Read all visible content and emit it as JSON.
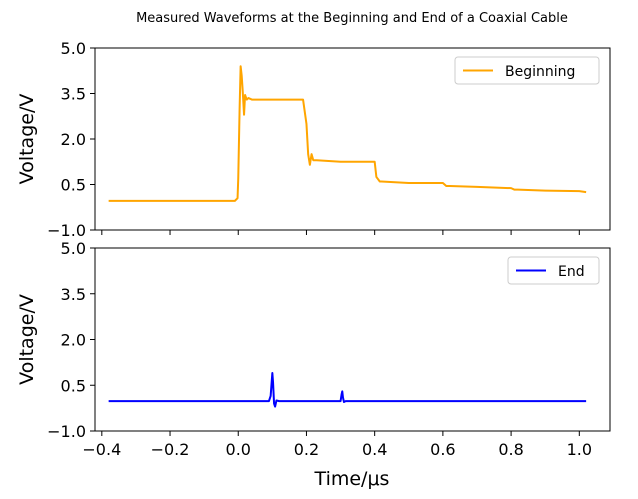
{
  "chart_data": {
    "type": "line",
    "title": "Measured Waveforms at the Beginning and End of a Coaxial Cable",
    "xlabel": "Time/μs",
    "xlim": [
      -0.42,
      1.09
    ],
    "xticks": [
      -0.4,
      -0.2,
      0.0,
      0.2,
      0.4,
      0.6,
      0.8,
      1.0
    ],
    "xtick_labels": [
      "−0.4",
      "−0.2",
      "0.0",
      "0.2",
      "0.4",
      "0.6",
      "0.8",
      "1.0"
    ],
    "subplots": [
      {
        "ylabel": "Voltage/V",
        "ylim": [
          -1.0,
          5.0
        ],
        "yticks": [
          -1.0,
          0.5,
          2.0,
          3.5,
          5.0
        ],
        "ytick_labels": [
          "−1.0",
          "0.5",
          "2.0",
          "3.5",
          "5.0"
        ],
        "legend_position": "top-right",
        "grid": false,
        "series": [
          {
            "name": "Beginning",
            "color": "#ffa500",
            "x": [
              -0.38,
              -0.2,
              -0.01,
              -0.002,
              0.0,
              0.004,
              0.007,
              0.01,
              0.013,
              0.017,
              0.02,
              0.025,
              0.03,
              0.04,
              0.1,
              0.19,
              0.2,
              0.205,
              0.21,
              0.215,
              0.22,
              0.23,
              0.3,
              0.4,
              0.405,
              0.415,
              0.42,
              0.5,
              0.6,
              0.61,
              0.62,
              0.7,
              0.8,
              0.81,
              0.82,
              0.9,
              1.0,
              1.02
            ],
            "y": [
              -0.04,
              -0.04,
              -0.04,
              0.05,
              0.7,
              3.0,
              4.4,
              4.1,
              3.6,
              2.8,
              3.45,
              3.3,
              3.35,
              3.3,
              3.3,
              3.3,
              2.5,
              1.5,
              1.15,
              1.5,
              1.3,
              1.3,
              1.25,
              1.25,
              0.75,
              0.6,
              0.6,
              0.55,
              0.55,
              0.45,
              0.45,
              0.42,
              0.38,
              0.33,
              0.33,
              0.3,
              0.28,
              0.25
            ]
          }
        ]
      },
      {
        "ylabel": "Voltage/V",
        "ylim": [
          -1.0,
          5.0
        ],
        "yticks": [
          -1.0,
          0.5,
          2.0,
          3.5,
          5.0
        ],
        "ytick_labels": [
          "−1.0",
          "0.5",
          "2.0",
          "3.5",
          "5.0"
        ],
        "legend_position": "top-right",
        "grid": false,
        "series": [
          {
            "name": "End",
            "color": "#0000ff",
            "x": [
              -0.38,
              0.0,
              0.09,
              0.095,
              0.1,
              0.102,
              0.105,
              0.108,
              0.112,
              0.12,
              0.3,
              0.303,
              0.305,
              0.307,
              0.31,
              0.315,
              1.02
            ],
            "y": [
              -0.02,
              -0.02,
              -0.02,
              0.15,
              0.9,
              0.6,
              -0.1,
              -0.2,
              0.0,
              -0.02,
              -0.02,
              0.2,
              0.3,
              0.1,
              -0.05,
              -0.02,
              -0.02
            ]
          }
        ]
      }
    ]
  }
}
